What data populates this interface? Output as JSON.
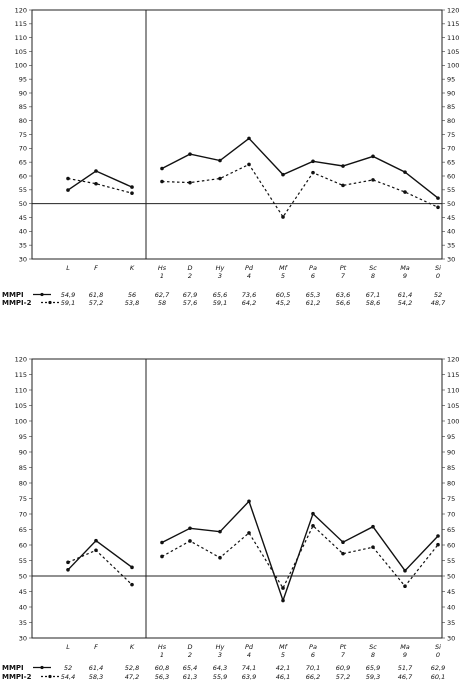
{
  "legend": [
    {
      "label": "MMPI",
      "style": "solid"
    },
    {
      "label": "MMPI-2",
      "style": "dashed"
    }
  ],
  "validity_scales": [
    "L",
    "F",
    "K"
  ],
  "clinical_scales": [
    {
      "abbr": "Hs",
      "num": "1"
    },
    {
      "abbr": "D",
      "num": "2"
    },
    {
      "abbr": "Hy",
      "num": "3"
    },
    {
      "abbr": "Pd",
      "num": "4"
    },
    {
      "abbr": "Mf",
      "num": "5"
    },
    {
      "abbr": "Pa",
      "num": "6"
    },
    {
      "abbr": "Pt",
      "num": "7"
    },
    {
      "abbr": "Sc",
      "num": "8"
    },
    {
      "abbr": "Ma",
      "num": "9"
    },
    {
      "abbr": "Si",
      "num": "0"
    }
  ],
  "chart_data": [
    {
      "type": "line",
      "categories": [
        "L",
        "F",
        "K",
        "Hs 1",
        "D 2",
        "Hy 3",
        "Pd 4",
        "Mf 5",
        "Pa 6",
        "Pt 7",
        "Sc 8",
        "Ma 9",
        "Si 0"
      ],
      "ylim": [
        30,
        120
      ],
      "yticks": [
        30,
        35,
        40,
        45,
        50,
        55,
        60,
        65,
        70,
        75,
        80,
        85,
        90,
        95,
        100,
        105,
        110,
        115,
        120
      ],
      "reference_line": 50,
      "series": [
        {
          "name": "MMPI",
          "style": "solid",
          "values": [
            54.9,
            61.8,
            56,
            62.7,
            67.9,
            65.6,
            73.6,
            60.5,
            65.3,
            63.6,
            67.1,
            61.4,
            52
          ],
          "labels": [
            "54,9",
            "61,8",
            "56",
            "62,7",
            "67,9",
            "65,6",
            "73,6",
            "60,5",
            "65,3",
            "63,6",
            "67,1",
            "61,4",
            "52"
          ]
        },
        {
          "name": "MMPI-2",
          "style": "dashed",
          "values": [
            59.1,
            57.2,
            53.8,
            58,
            57.6,
            59.1,
            64.2,
            45.2,
            61.2,
            56.6,
            58.6,
            54.2,
            48.7
          ],
          "labels": [
            "59,1",
            "57,2",
            "53,8",
            "58",
            "57,6",
            "59,1",
            "64,2",
            "45,2",
            "61,2",
            "56,6",
            "58,6",
            "54,2",
            "48,7"
          ]
        }
      ]
    },
    {
      "type": "line",
      "categories": [
        "L",
        "F",
        "K",
        "Hs 1",
        "D 2",
        "Hy 3",
        "Pd 4",
        "Mf 5",
        "Pa 6",
        "Pt 7",
        "Sc 8",
        "Ma 9",
        "Si 0"
      ],
      "ylim": [
        30,
        120
      ],
      "yticks": [
        30,
        35,
        40,
        45,
        50,
        55,
        60,
        65,
        70,
        75,
        80,
        85,
        90,
        95,
        100,
        105,
        110,
        115,
        120
      ],
      "reference_line": 50,
      "series": [
        {
          "name": "MMPI",
          "style": "solid",
          "values": [
            52,
            61.4,
            52.8,
            60.8,
            65.4,
            64.3,
            74.1,
            42.1,
            70.1,
            60.9,
            65.9,
            51.7,
            62.9
          ],
          "labels": [
            "52",
            "61,4",
            "52,8",
            "60,8",
            "65,4",
            "64,3",
            "74,1",
            "42,1",
            "70,1",
            "60,9",
            "65,9",
            "51,7",
            "62,9"
          ]
        },
        {
          "name": "MMPI-2",
          "style": "dashed",
          "values": [
            54.4,
            58.3,
            47.2,
            56.3,
            61.3,
            55.9,
            63.9,
            46.1,
            66.2,
            57.2,
            59.3,
            46.7,
            60.1
          ],
          "labels": [
            "54,4",
            "58,3",
            "47,2",
            "56,3",
            "61,3",
            "55,9",
            "63,9",
            "46,1",
            "66,2",
            "57,2",
            "59,3",
            "46,7",
            "60,1"
          ]
        }
      ]
    }
  ]
}
